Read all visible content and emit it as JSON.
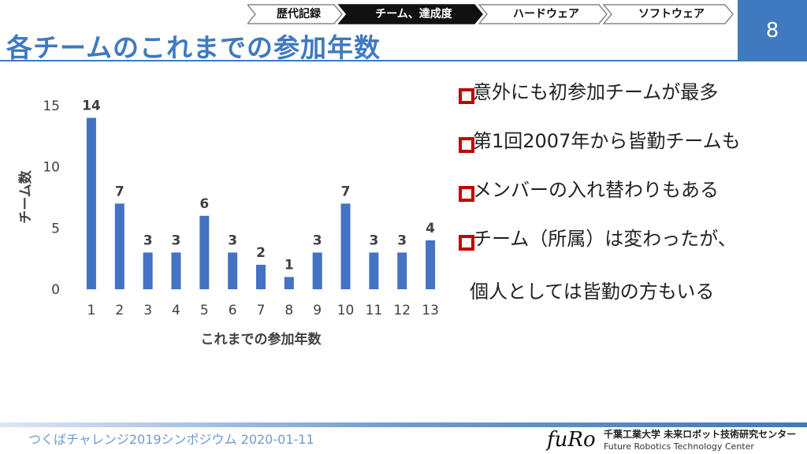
{
  "nav": {
    "tabs": [
      {
        "label": "歴代記録",
        "active": false
      },
      {
        "label": "チーム、達成度",
        "active": true
      },
      {
        "label": "ハードウェア",
        "active": false
      },
      {
        "label": "ソフトウェア",
        "active": false
      }
    ]
  },
  "page_number": "8",
  "title": "各チームのこれまでの参加年数",
  "bullets": [
    "意外にも初参加チームが最多",
    "第1回2007年から皆勤チームも",
    "メンバーの入れ替わりもある",
    "チーム（所属）は変わったが、"
  ],
  "bullet_continuation": "個人としては皆勤の方もいる",
  "footer": {
    "event": "つくばチャレンジ2019シンポジウム 2020-01-11",
    "org_jp": "千葉工業大学 未来ロボット技術研究センター",
    "org_en": "Future Robotics Technology Center",
    "logo": "fuRo"
  },
  "colors": {
    "accent": "#3f79c0",
    "bar": "#4472c4",
    "bullet": "#c00000"
  },
  "chart_data": {
    "type": "bar",
    "categories": [
      "1",
      "2",
      "3",
      "4",
      "5",
      "6",
      "7",
      "8",
      "9",
      "10",
      "11",
      "12",
      "13"
    ],
    "values": [
      14,
      7,
      3,
      3,
      6,
      3,
      2,
      1,
      3,
      7,
      3,
      3,
      4
    ],
    "xlabel": "これまでの参加年数",
    "ylabel": "チーム数",
    "ylim": [
      0,
      15
    ],
    "yticks": [
      0,
      5,
      10,
      15
    ],
    "data_labels": true,
    "grid": false
  }
}
